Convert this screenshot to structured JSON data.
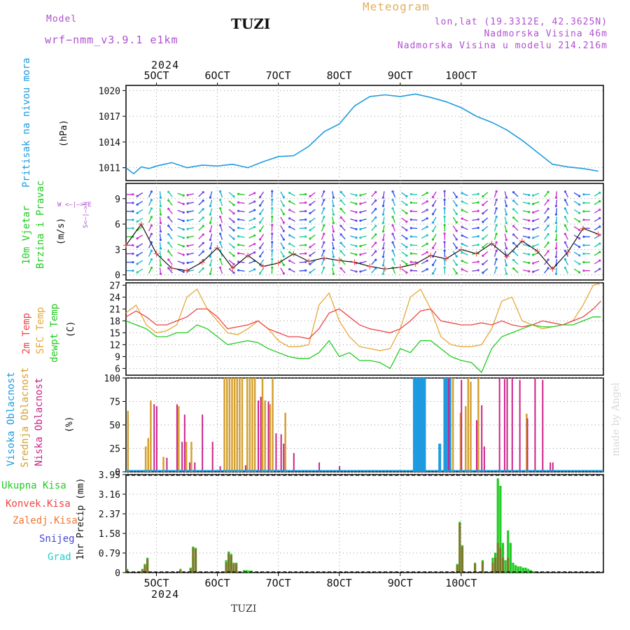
{
  "header": {
    "model_label": "Model",
    "model_value": "wrf−nmm_v3.9.1  e1km",
    "title": "TUZI",
    "meteogram_label": "Meteogram",
    "lonlat": "lon,lat (19.3312E, 42.3625N)",
    "elevation": "Nadmorska Visina 46m",
    "model_elevation": "Nadmorska Visina u modelu 214.216m",
    "year": "2024",
    "footer_station": "TUZI",
    "watermark": "made by Angel"
  },
  "colors": {
    "pressure": "#1e9be0",
    "wind_title": "#22cc22",
    "temp_2m": "#ee4444",
    "temp_sfc": "#e8a838",
    "dewpoint": "#22cc22",
    "cloud_high": "#1e9be0",
    "cloud_mid": "#d4a030",
    "cloud_low": "#cc2288",
    "precip_total": "#22cc22",
    "precip_conv": "#ee4444",
    "precip_frz": "#ee7733",
    "precip_snow": "#4444dd",
    "precip_hail": "#22cccc",
    "magenta": "#b050d0",
    "orange": "#e0b060"
  },
  "labels": {
    "pressure": [
      "Pritisak na nivou mora",
      "(hPa)"
    ],
    "wind": [
      "10m Vjetar",
      "Brzina i Pravac",
      "(m/s)"
    ],
    "wind_compass": "W <—|—> E",
    "wind_compass_ns": "S<—|—>N",
    "temp": [
      "2m Temp",
      "SFC Temp",
      "dewpt Temp",
      "(C)"
    ],
    "cloud": [
      "Visoka Oblacnost",
      "Srednja Oblacnost",
      "Niska Oblacnost",
      "(%)"
    ],
    "precip_legend": [
      "Ukupna Kisa",
      "Konvek.Kisa",
      "Zaledj.Kisa",
      "Snijeg",
      "Grad"
    ],
    "precip_axis": "1hr Precip (mm)"
  },
  "chart_data": [
    {
      "type": "line",
      "panel": "pressure",
      "ylabel": "(hPa)",
      "ylim": [
        1009.5,
        1020.6
      ],
      "yticks": [
        1011,
        1014,
        1017,
        1020
      ],
      "x_dates": [
        "5OCT",
        "6OCT",
        "7OCT",
        "8OCT",
        "9OCT",
        "10OCT"
      ],
      "series": [
        {
          "name": "Pritisak na nivou mora",
          "x": [
            0,
            3,
            6,
            9,
            12,
            18,
            24,
            30,
            36,
            42,
            48,
            54,
            60,
            66,
            72,
            78,
            84,
            90,
            96,
            102,
            108,
            114,
            120,
            126,
            132,
            138,
            144,
            150,
            156,
            162,
            168,
            174,
            180,
            186
          ],
          "values": [
            1011.0,
            1010.3,
            1011.1,
            1010.9,
            1011.2,
            1011.6,
            1011.0,
            1011.3,
            1011.2,
            1011.4,
            1011.0,
            1011.7,
            1012.3,
            1012.4,
            1013.5,
            1015.2,
            1016.1,
            1018.2,
            1019.3,
            1019.5,
            1019.3,
            1019.6,
            1019.2,
            1018.7,
            1018.0,
            1017.0,
            1016.3,
            1015.4,
            1014.2,
            1012.8,
            1011.4,
            1011.1,
            1010.9,
            1010.6
          ]
        }
      ]
    },
    {
      "type": "line",
      "panel": "wind",
      "ylabel": "(m/s)",
      "ylim": [
        -0.6,
        10.8
      ],
      "yticks": [
        0,
        3,
        6,
        9
      ],
      "series": [
        {
          "name": "speed",
          "x": [
            0,
            6,
            12,
            18,
            24,
            30,
            36,
            42,
            48,
            54,
            60,
            66,
            72,
            78,
            84,
            90,
            96,
            102,
            108,
            114,
            120,
            126,
            132,
            138,
            144,
            150,
            156,
            162,
            168,
            174,
            180,
            186
          ],
          "values": [
            3.5,
            6.0,
            2.5,
            0.8,
            0.5,
            1.5,
            3.2,
            0.8,
            2.3,
            1.0,
            1.4,
            2.5,
            1.6,
            2.0,
            1.7,
            1.5,
            1.0,
            0.7,
            0.9,
            1.3,
            2.3,
            1.9,
            3.0,
            2.5,
            3.7,
            2.2,
            4.0,
            2.8,
            0.7,
            2.7,
            5.5,
            4.8
          ]
        }
      ]
    },
    {
      "type": "line",
      "panel": "temperature",
      "ylabel": "(C)",
      "ylim": [
        4.3,
        27.6
      ],
      "yticks": [
        6,
        9,
        12,
        15,
        18,
        21,
        24,
        27
      ],
      "series": [
        {
          "name": "2m Temp",
          "x": [
            0,
            4,
            8,
            12,
            16,
            20,
            24,
            28,
            32,
            36,
            40,
            44,
            48,
            52,
            56,
            60,
            64,
            68,
            72,
            76,
            80,
            84,
            88,
            92,
            96,
            100,
            104,
            108,
            112,
            116,
            120,
            124,
            128,
            132,
            136,
            140,
            144,
            148,
            152,
            156,
            160,
            164,
            168,
            172,
            176,
            180,
            184,
            187
          ],
          "values": [
            19,
            20.5,
            19,
            17,
            17,
            18,
            19,
            21,
            21,
            19,
            16,
            16.5,
            17,
            18,
            16,
            15,
            14,
            14,
            13.5,
            16,
            20,
            21,
            19,
            17,
            16,
            15.5,
            15,
            16,
            18,
            20.5,
            21,
            18,
            17.5,
            17,
            17,
            17.5,
            17,
            18,
            17,
            16.5,
            17,
            18,
            17.5,
            17,
            18,
            19,
            21,
            23
          ]
        },
        {
          "name": "SFC Temp",
          "x": [
            0,
            4,
            8,
            12,
            16,
            20,
            24,
            28,
            32,
            36,
            40,
            44,
            48,
            52,
            56,
            60,
            64,
            68,
            72,
            76,
            80,
            84,
            88,
            92,
            96,
            100,
            104,
            108,
            112,
            116,
            120,
            124,
            128,
            132,
            136,
            140,
            144,
            148,
            152,
            156,
            160,
            164,
            168,
            172,
            176,
            180,
            184,
            187
          ],
          "values": [
            20,
            22,
            17,
            15,
            15.5,
            17,
            24,
            26,
            21,
            18,
            15,
            14.5,
            16,
            18,
            16,
            13,
            11.5,
            11.5,
            12,
            22,
            25,
            18,
            14,
            11.5,
            11,
            10.5,
            11,
            16,
            24,
            26,
            21,
            14,
            12,
            11.5,
            11.5,
            12,
            16,
            23,
            24,
            18,
            17,
            16,
            16.5,
            17,
            18,
            22,
            27,
            27.5
          ]
        },
        {
          "name": "dewpt Temp",
          "x": [
            0,
            4,
            8,
            12,
            16,
            20,
            24,
            28,
            32,
            36,
            40,
            44,
            48,
            52,
            56,
            60,
            64,
            68,
            72,
            76,
            80,
            84,
            88,
            92,
            96,
            100,
            104,
            108,
            112,
            116,
            120,
            124,
            128,
            132,
            136,
            140,
            144,
            148,
            152,
            156,
            160,
            164,
            168,
            172,
            176,
            180,
            184,
            187
          ],
          "values": [
            18,
            17,
            16,
            14,
            14,
            15,
            15,
            17,
            16,
            14,
            12,
            12.5,
            13,
            12.5,
            11,
            10,
            9,
            8.5,
            8.5,
            10,
            13,
            9,
            10,
            8,
            8,
            7.5,
            6,
            11,
            10,
            13,
            13,
            11,
            9,
            8,
            7.5,
            5,
            11,
            14,
            15,
            16,
            17,
            16.5,
            16.5,
            17,
            17,
            18,
            19,
            19
          ]
        }
      ]
    },
    {
      "type": "bar",
      "panel": "cloud",
      "ylabel": "(%)",
      "ylim": [
        0,
        100
      ],
      "yticks": [
        0,
        25,
        50,
        75,
        100
      ],
      "series": [
        {
          "name": "Visoka Oblacnost",
          "x": [
            113,
            114,
            115,
            116,
            117,
            123,
            125,
            126,
            127
          ],
          "values": [
            100,
            100,
            100,
            100,
            100,
            30,
            100,
            100,
            100
          ]
        },
        {
          "name": "Srednja Oblacnost",
          "x": [
            0,
            7,
            8,
            9,
            14,
            20,
            23,
            25,
            38,
            39,
            40,
            41,
            42,
            43,
            44,
            45,
            47,
            48,
            49,
            50,
            53,
            54,
            56,
            57,
            62,
            128,
            131,
            133,
            134,
            135,
            138,
            157
          ],
          "values": [
            65,
            27,
            36,
            76,
            16,
            70,
            32,
            32,
            100,
            100,
            100,
            100,
            100,
            100,
            100,
            100,
            100,
            100,
            100,
            100,
            100,
            76,
            72,
            100,
            63,
            100,
            63,
            70,
            100,
            96,
            100,
            62
          ]
        },
        {
          "name": "Niska Oblacnost",
          "x": [
            10,
            11,
            15,
            19,
            21,
            22,
            24,
            26,
            29,
            33,
            36,
            46,
            51,
            52,
            55,
            58,
            60,
            61,
            65,
            75,
            83,
            126,
            131,
            137,
            139,
            140,
            146,
            148,
            149,
            151,
            154,
            157,
            160,
            163,
            166,
            167
          ],
          "values": [
            72,
            70,
            15,
            72,
            32,
            61,
            10,
            10,
            61,
            32,
            6,
            7,
            76,
            80,
            75,
            41,
            40,
            30,
            20,
            10,
            6,
            100,
            98,
            55,
            71,
            27,
            100,
            99,
            100,
            100,
            98,
            57,
            100,
            98,
            10,
            10
          ]
        }
      ]
    },
    {
      "type": "bar",
      "panel": "precipitation",
      "ylabel": "1hr Precip (mm)",
      "ylim": [
        0,
        3.95
      ],
      "yticks": [
        0,
        0.79,
        1.58,
        2.37,
        3.16,
        3.95
      ],
      "series": [
        {
          "name": "Ukupna Kisa",
          "x": [
            0,
            6,
            7,
            8,
            21,
            25,
            26,
            27,
            39,
            40,
            41,
            42,
            43,
            46,
            47,
            48,
            49,
            130,
            131,
            132,
            137,
            140,
            144,
            145,
            146,
            147,
            148,
            149,
            150,
            151,
            152,
            153,
            154,
            155,
            156,
            157,
            158,
            159,
            160
          ],
          "values": [
            0.15,
            0.15,
            0.35,
            0.6,
            0.15,
            0.2,
            1.05,
            1.0,
            0.5,
            0.85,
            0.75,
            0.4,
            0.4,
            0.1,
            0.1,
            0.08,
            0.08,
            0.35,
            2.05,
            1.1,
            0.4,
            0.5,
            0.6,
            0.8,
            3.8,
            3.5,
            1.2,
            0.5,
            1.7,
            1.2,
            0.4,
            0.3,
            0.25,
            0.25,
            0.2,
            0.2,
            0.15,
            0.1,
            0.05
          ]
        },
        {
          "name": "Konvek.Kisa",
          "x": [
            0,
            6,
            7,
            8,
            21,
            25,
            26,
            27,
            39,
            40,
            41,
            42,
            43,
            130,
            131,
            132,
            137,
            140,
            144,
            145,
            146,
            147,
            148,
            150
          ],
          "values": [
            0.1,
            0.1,
            0.3,
            0.55,
            0.1,
            0.15,
            1.0,
            0.95,
            0.4,
            0.8,
            0.7,
            0.35,
            0.35,
            0.3,
            2.0,
            1.05,
            0.35,
            0.45,
            0.4,
            0.6,
            1.2,
            1.0,
            0.6,
            0.6
          ]
        }
      ]
    }
  ]
}
